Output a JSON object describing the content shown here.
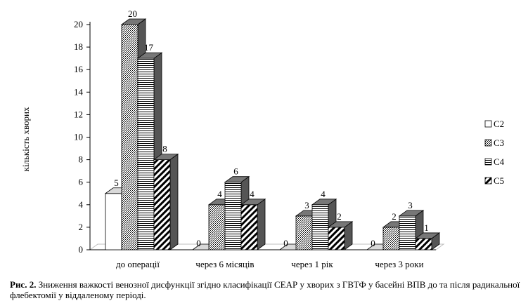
{
  "chart_data": {
    "type": "bar",
    "categories": [
      "до операції",
      "через 6 місяців",
      "через 1 рік",
      "через 3 роки"
    ],
    "series": [
      {
        "name": "C2",
        "values": [
          5,
          0,
          0,
          0
        ]
      },
      {
        "name": "C3",
        "values": [
          20,
          4,
          3,
          2
        ]
      },
      {
        "name": "C4",
        "values": [
          17,
          6,
          4,
          3
        ]
      },
      {
        "name": "C5",
        "values": [
          8,
          4,
          2,
          1
        ]
      }
    ],
    "title": "",
    "xlabel": "",
    "ylabel": "кількість хворих",
    "ylim": [
      0,
      20
    ],
    "yticks": [
      0,
      2,
      4,
      6,
      8,
      10,
      12,
      14,
      16,
      18,
      20
    ],
    "grid": false,
    "legend_position": "right",
    "style": "3d-clustered-column"
  },
  "caption": {
    "label": "Рис. 2.",
    "text": " Зниження важкості венозної дисфункції згідно класифікації СЕАР у хворих з ГВТФ у басейні ВПВ до та після радикальної флебектомії у віддаленому періоді."
  }
}
